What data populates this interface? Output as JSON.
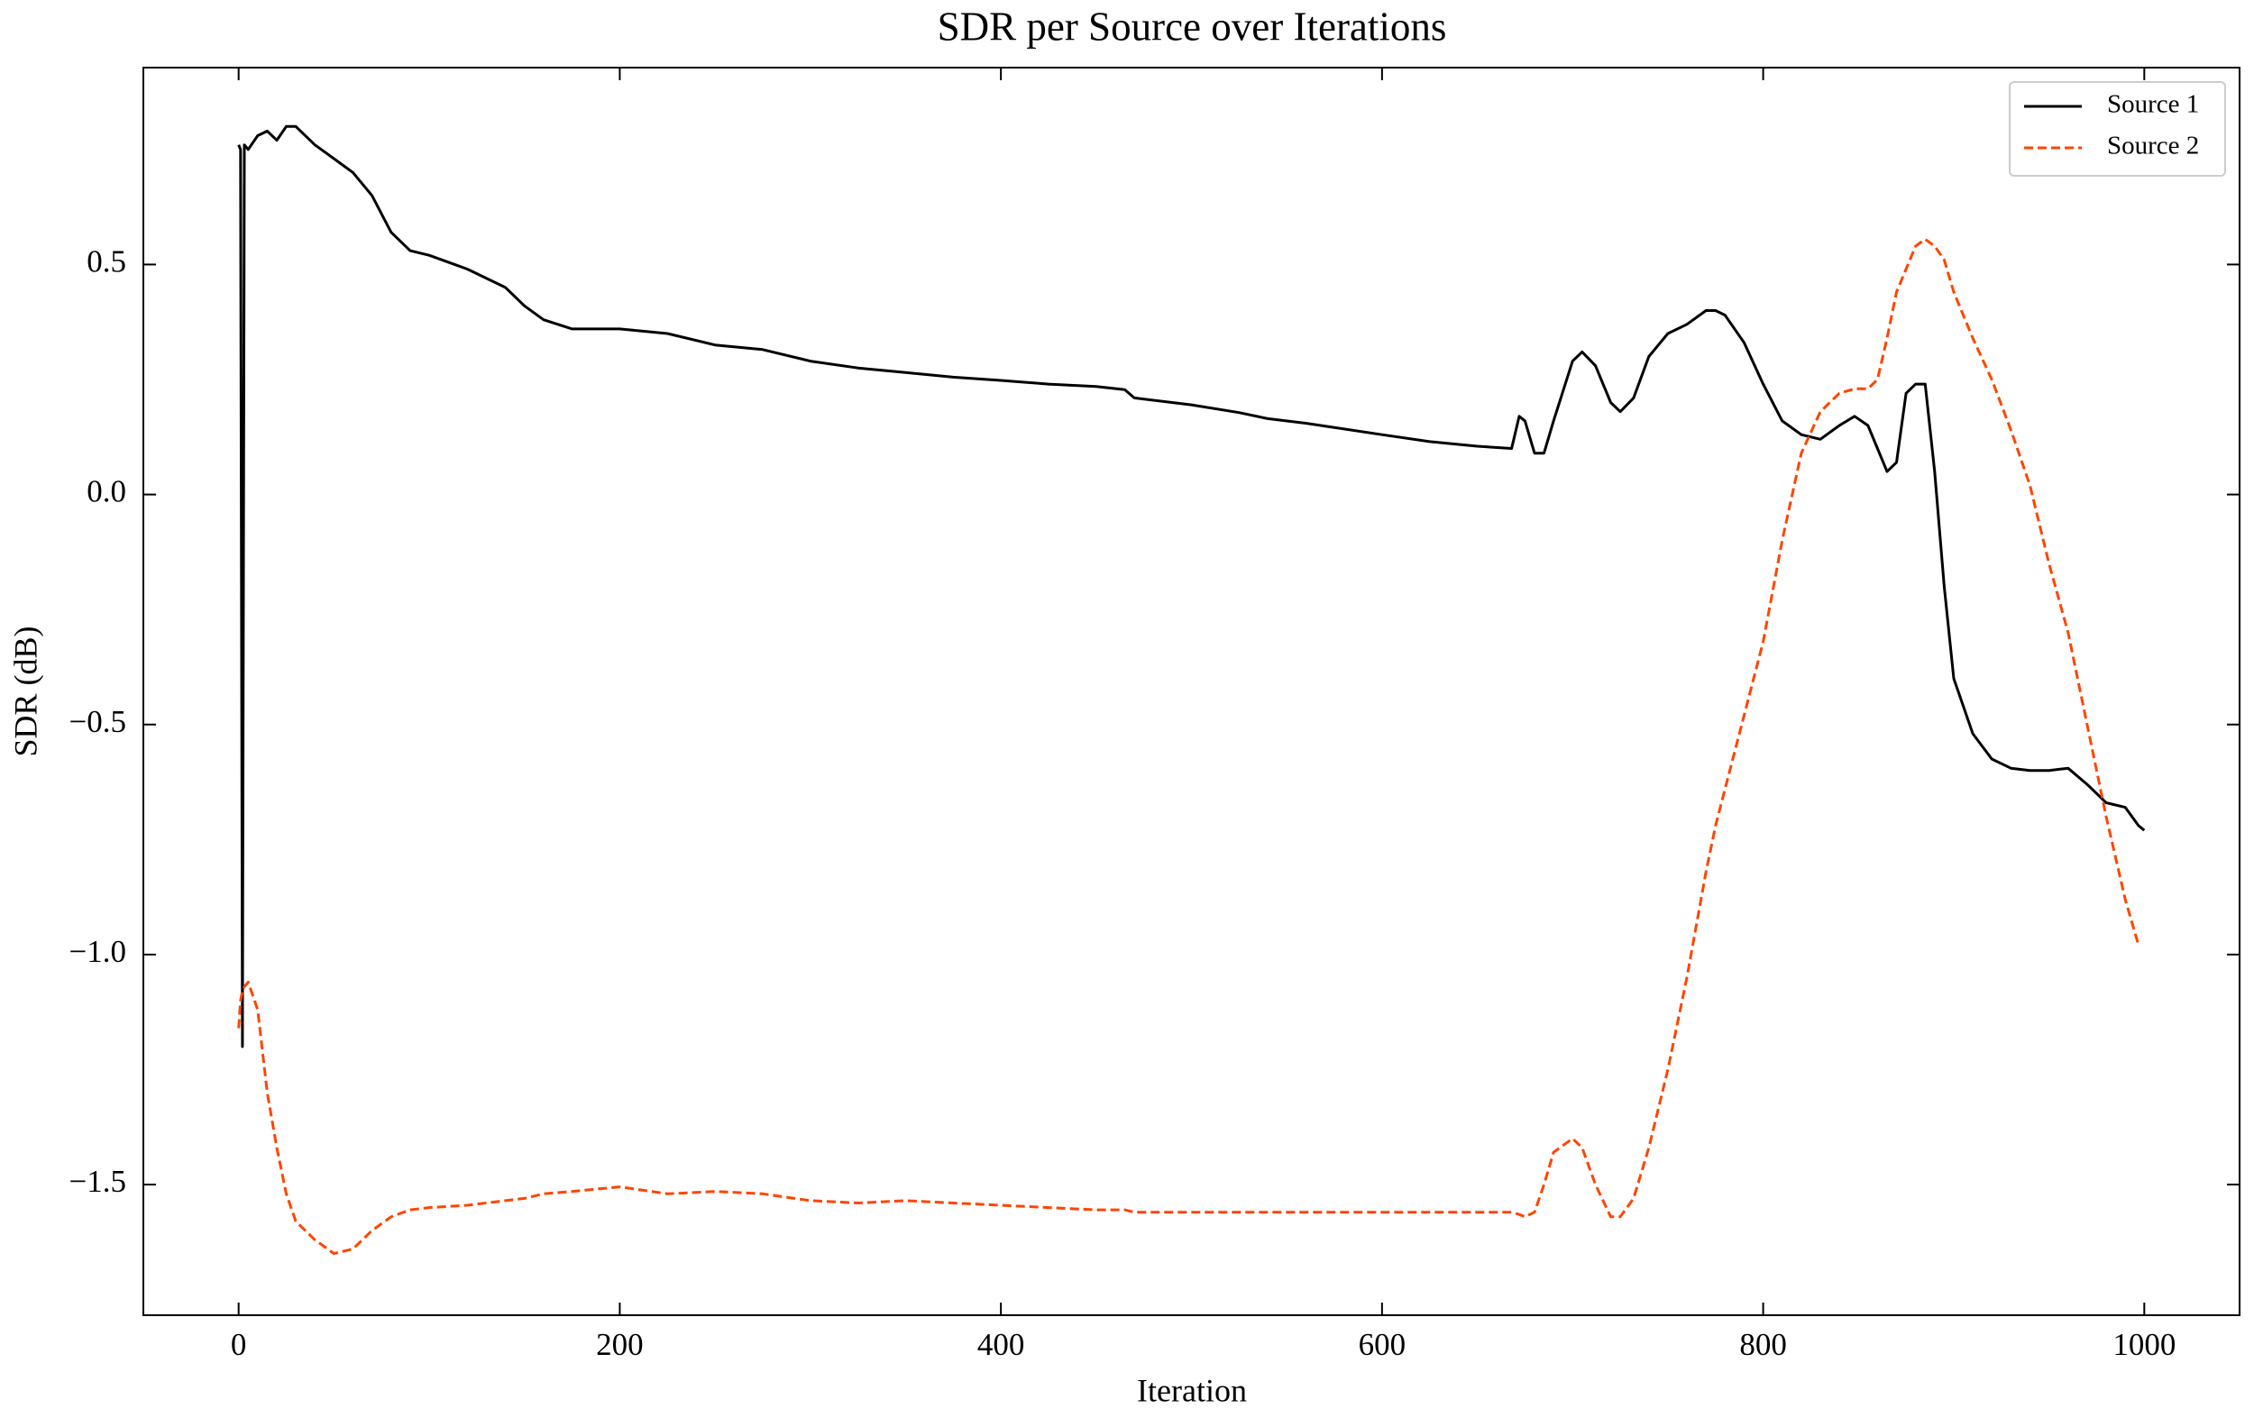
{
  "chart_data": {
    "type": "line",
    "title": "SDR per Source over Iterations",
    "x_label": "Iteration",
    "y_label": "SDR (dB)",
    "x": [
      0,
      1,
      2,
      3,
      5,
      10,
      15,
      20,
      25,
      30,
      40,
      50,
      60,
      70,
      80,
      90,
      100,
      120,
      140,
      150,
      160,
      175,
      200,
      225,
      250,
      275,
      300,
      325,
      350,
      375,
      400,
      425,
      450,
      465,
      470,
      500,
      525,
      540,
      560,
      600,
      625,
      650,
      668,
      672,
      675,
      680,
      685,
      690,
      700,
      705,
      712,
      720,
      725,
      732,
      740,
      750,
      760,
      770,
      775,
      780,
      790,
      800,
      810,
      820,
      830,
      840,
      848,
      855,
      860,
      865,
      870,
      875,
      880,
      885,
      890,
      895,
      900,
      910,
      920,
      930,
      940,
      950,
      960,
      970,
      980,
      990,
      997,
      1000
    ],
    "series": [
      {
        "name": "Source 1",
        "color": "#000000",
        "linestyle": "solid",
        "values": [
          0.76,
          0.75,
          -1.2,
          0.76,
          0.75,
          0.78,
          0.79,
          0.77,
          0.8,
          0.8,
          0.76,
          0.73,
          0.7,
          0.65,
          0.57,
          0.53,
          0.52,
          0.49,
          0.45,
          0.41,
          0.38,
          0.36,
          0.36,
          0.35,
          0.325,
          0.315,
          0.29,
          0.275,
          0.265,
          0.255,
          0.248,
          0.24,
          0.235,
          0.228,
          0.21,
          0.195,
          0.178,
          0.165,
          0.155,
          0.13,
          0.115,
          0.105,
          0.1,
          0.17,
          0.16,
          0.09,
          0.09,
          0.16,
          0.29,
          0.31,
          0.28,
          0.2,
          0.18,
          0.21,
          0.3,
          0.35,
          0.37,
          0.4,
          0.4,
          0.39,
          0.33,
          0.24,
          0.16,
          0.13,
          0.12,
          0.15,
          0.17,
          0.15,
          0.1,
          0.05,
          0.07,
          0.22,
          0.24,
          0.24,
          0.05,
          -0.2,
          -0.4,
          -0.52,
          -0.575,
          -0.595,
          -0.6,
          -0.6,
          -0.595,
          -0.63,
          -0.67,
          -0.68,
          -0.72,
          -0.73
        ]
      },
      {
        "name": "Source 2",
        "color": "#ff4500",
        "linestyle": "dashed",
        "values": [
          -1.16,
          -1.1,
          -1.08,
          -1.07,
          -1.06,
          -1.12,
          -1.3,
          -1.42,
          -1.52,
          -1.58,
          -1.62,
          -1.65,
          -1.64,
          -1.6,
          -1.57,
          -1.555,
          -1.55,
          -1.545,
          -1.535,
          -1.53,
          -1.52,
          -1.515,
          -1.505,
          -1.52,
          -1.515,
          -1.52,
          -1.535,
          -1.54,
          -1.535,
          -1.54,
          -1.545,
          -1.55,
          -1.555,
          -1.555,
          -1.56,
          -1.56,
          -1.56,
          -1.56,
          -1.56,
          -1.56,
          -1.56,
          -1.56,
          -1.56,
          -1.565,
          -1.57,
          -1.56,
          -1.5,
          -1.43,
          -1.4,
          -1.42,
          -1.5,
          -1.57,
          -1.57,
          -1.53,
          -1.42,
          -1.25,
          -1.05,
          -0.82,
          -0.72,
          -0.64,
          -0.48,
          -0.32,
          -0.1,
          0.09,
          0.18,
          0.22,
          0.23,
          0.23,
          0.25,
          0.34,
          0.44,
          0.49,
          0.54,
          0.555,
          0.54,
          0.51,
          0.44,
          0.34,
          0.25,
          0.14,
          0.02,
          -0.15,
          -0.3,
          -0.5,
          -0.7,
          -0.88,
          -0.98,
          null
        ]
      }
    ],
    "xlim": [
      -50,
      1050
    ],
    "ylim": [
      -1.784,
      0.928
    ],
    "xticks": [
      0,
      200,
      400,
      600,
      800,
      1000
    ],
    "yticks": [
      {
        "value": -1.5,
        "label": "−1.5"
      },
      {
        "value": -1.0,
        "label": "−1.0"
      },
      {
        "value": -0.5,
        "label": "−0.5"
      },
      {
        "value": 0,
        "label": "0.0"
      },
      0.5
    ],
    "grid": false,
    "legend": "upper right"
  }
}
